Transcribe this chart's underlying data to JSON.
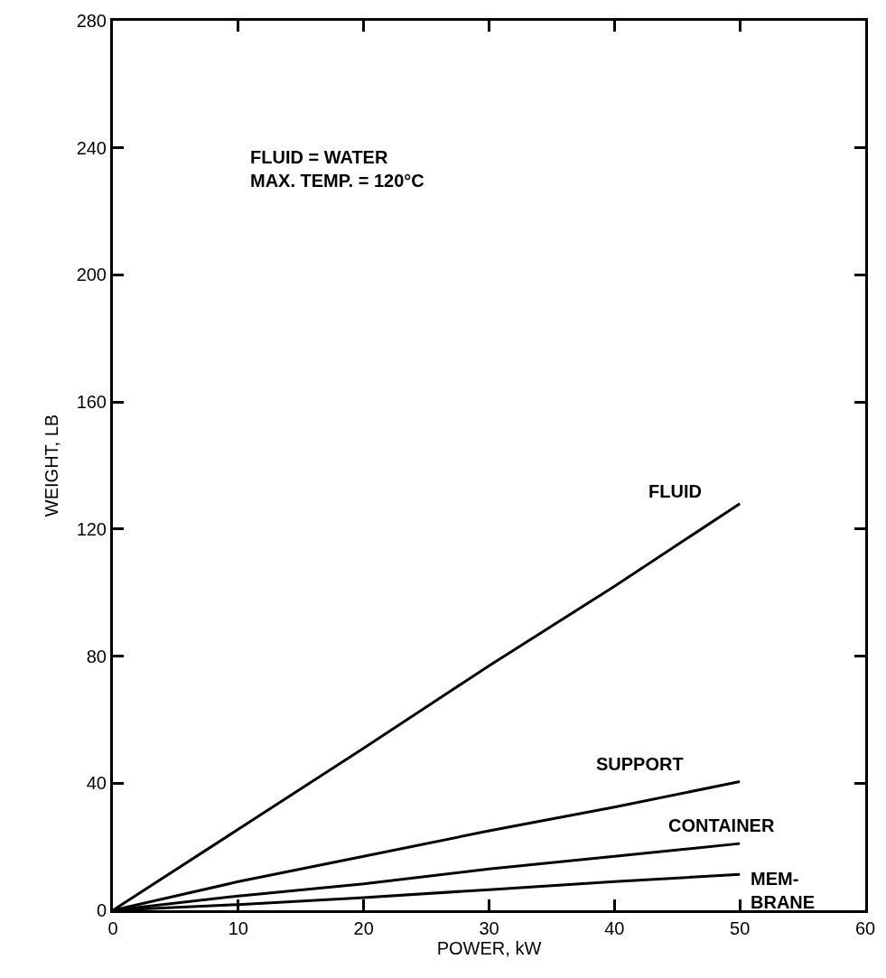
{
  "chart_data": {
    "type": "line",
    "xlabel": "POWER, kW",
    "ylabel": "WEIGHT, LB",
    "x": [
      0,
      10,
      20,
      30,
      40,
      50
    ],
    "series": [
      {
        "name": "FLUID",
        "color": "#000000",
        "values": [
          0,
          25.5,
          51,
          77,
          102,
          128
        ]
      },
      {
        "name": "SUPPORT",
        "color": "#000000",
        "values": [
          0,
          9,
          17,
          25,
          32.5,
          40.5
        ]
      },
      {
        "name": "CONTAINER",
        "color": "#000000",
        "values": [
          0,
          4.5,
          8.3,
          13,
          17,
          21
        ]
      },
      {
        "name": "MEM-\nBRANE",
        "color": "#000000",
        "values": [
          0,
          1.8,
          4,
          6.5,
          9,
          11.3
        ]
      }
    ],
    "annotations": [
      "FLUID = WATER\nMAX. TEMP. = 120°C"
    ],
    "xlim": [
      0,
      60
    ],
    "xticks": [
      0,
      10,
      20,
      30,
      40,
      50,
      60
    ],
    "ylim": [
      0,
      280
    ],
    "yticks": [
      0,
      40,
      80,
      120,
      160,
      200,
      240,
      280
    ],
    "legend": false,
    "marker": "none",
    "line_style": "solid"
  }
}
